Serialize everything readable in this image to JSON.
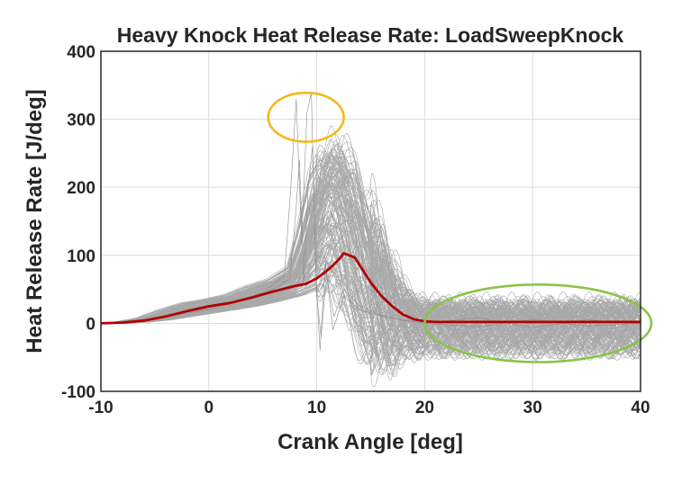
{
  "chart_data": {
    "type": "line",
    "title": "Heavy Knock Heat Release Rate: LoadSweepKnock",
    "xlabel": "Crank Angle [deg]",
    "ylabel": "Heat Release Rate [J/deg]",
    "xlim": [
      -10,
      40
    ],
    "ylim": [
      -100,
      400
    ],
    "x_ticks": [
      "-10",
      "0",
      "10",
      "20",
      "30",
      "40"
    ],
    "y_ticks": [
      "-100",
      "0",
      "100",
      "200",
      "300",
      "400"
    ],
    "grid": true,
    "legend": "none",
    "colors": {
      "traces": "#a8a8a8",
      "mean": "#b00000",
      "knock_circle": "#f5b716",
      "ringing_ellipse": "#8bc34a"
    },
    "annotations": [
      {
        "shape": "circle",
        "color": "knock_circle",
        "center": [
          9,
          303
        ],
        "rx": 3.5,
        "ry": 36
      },
      {
        "shape": "ellipse",
        "color": "ringing_ellipse",
        "center": [
          30.5,
          0
        ],
        "rx": 10.5,
        "ry": 57
      }
    ],
    "series": [
      {
        "role": "mean",
        "x": [
          -10,
          -8,
          -6,
          -4,
          -2,
          0,
          2,
          4,
          6,
          8,
          9,
          10,
          11,
          12,
          12.5,
          13,
          13.5,
          14,
          15,
          16,
          17,
          18,
          19,
          20,
          21,
          22,
          24,
          26,
          28,
          30,
          32,
          34,
          36,
          38,
          40
        ],
        "y": [
          0,
          1,
          4,
          10,
          18,
          25,
          30,
          38,
          47,
          55,
          58,
          66,
          78,
          93,
          103,
          100,
          97,
          85,
          60,
          40,
          25,
          13,
          6,
          3,
          2,
          2,
          2,
          2,
          2,
          2,
          2,
          2,
          2,
          2,
          2
        ]
      },
      {
        "role": "knock-cycle",
        "x": [
          -10,
          -5,
          0,
          5,
          7,
          7.6,
          8.1,
          8.6,
          9.1,
          9.5,
          9.9,
          10.3,
          10.8,
          11.5,
          12.5,
          14,
          16,
          18,
          20,
          25,
          30,
          35,
          40
        ],
        "y": [
          0,
          8,
          22,
          45,
          70,
          200,
          330,
          120,
          310,
          340,
          80,
          -40,
          90,
          -10,
          40,
          20,
          10,
          5,
          0,
          8,
          -6,
          5,
          0
        ]
      },
      {
        "role": "knock-cycle",
        "x": [
          -10,
          -5,
          0,
          5,
          7.5,
          8,
          8.4,
          8.8,
          9.2,
          9.6,
          10.0,
          10.4,
          10.9,
          11.6,
          12.5,
          14,
          16,
          18,
          20,
          25,
          30,
          35,
          40
        ],
        "y": [
          0,
          7,
          20,
          42,
          65,
          150,
          240,
          60,
          200,
          260,
          40,
          -20,
          70,
          10,
          50,
          25,
          12,
          4,
          0,
          -5,
          6,
          -4,
          0
        ]
      }
    ],
    "envelope_note": "Hundreds of grey individual-cycle traces spanning roughly the band between the lower and upper envelopes",
    "envelope": {
      "x": [
        -10,
        -8,
        -6,
        -4,
        -2,
        0,
        2,
        4,
        6,
        8,
        9,
        10,
        11,
        12,
        13,
        14,
        15,
        16,
        17,
        18,
        19,
        20,
        25,
        30,
        35,
        40
      ],
      "lower": [
        0,
        0,
        2,
        5,
        10,
        15,
        20,
        25,
        32,
        40,
        45,
        50,
        55,
        60,
        10,
        -30,
        -50,
        -55,
        -50,
        -45,
        -40,
        -40,
        -40,
        -40,
        -40,
        -40
      ],
      "upper": [
        0,
        2,
        8,
        20,
        30,
        35,
        42,
        55,
        65,
        85,
        150,
        230,
        260,
        270,
        250,
        200,
        170,
        120,
        80,
        50,
        35,
        30,
        30,
        30,
        30,
        30
      ]
    }
  }
}
